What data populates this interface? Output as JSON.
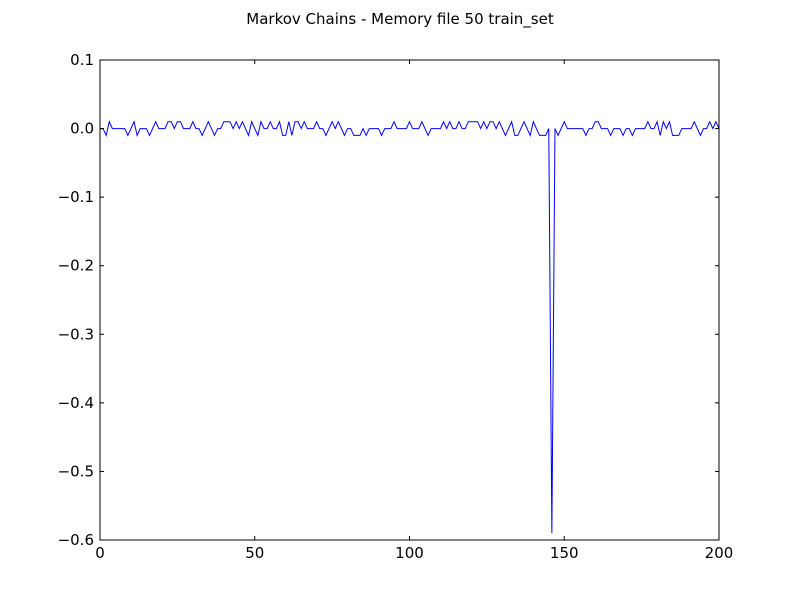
{
  "chart_data": {
    "type": "line",
    "title": "Markov Chains - Memory file 50 train_set",
    "xlabel": "",
    "ylabel": "",
    "xlim": [
      0,
      200
    ],
    "ylim": [
      -0.6,
      0.1
    ],
    "xticks": [
      "0",
      "50",
      "100",
      "150",
      "200"
    ],
    "yticks": [
      "0.1",
      "0.0",
      "−0.1",
      "−0.2",
      "−0.3",
      "−0.4",
      "−0.5",
      "−0.6"
    ],
    "grid": false,
    "series_color": "#0000ff",
    "series": [
      {
        "x": [
          0,
          1,
          2,
          3,
          4,
          5,
          6,
          7,
          8,
          9,
          10,
          11,
          12,
          13,
          14,
          15,
          16,
          17,
          18,
          19,
          20,
          21,
          22,
          23,
          24,
          25,
          26,
          27,
          28,
          29,
          30,
          31,
          32,
          33,
          34,
          35,
          36,
          37,
          38,
          39,
          40,
          41,
          42,
          43,
          44,
          45,
          46,
          47,
          48,
          49,
          50,
          51,
          52,
          53,
          54,
          55,
          56,
          57,
          58,
          59,
          60,
          61,
          62,
          63,
          64,
          65,
          66,
          67,
          68,
          69,
          70,
          71,
          72,
          73,
          74,
          75,
          76,
          77,
          78,
          79,
          80,
          81,
          82,
          83,
          84,
          85,
          86,
          87,
          88,
          89,
          90,
          91,
          92,
          93,
          94,
          95,
          96,
          97,
          98,
          99,
          100,
          101,
          102,
          103,
          104,
          105,
          106,
          107,
          108,
          109,
          110,
          111,
          112,
          113,
          114,
          115,
          116,
          117,
          118,
          119,
          120,
          121,
          122,
          123,
          124,
          125,
          126,
          127,
          128,
          129,
          130,
          131,
          132,
          133,
          134,
          135,
          136,
          137,
          138,
          139,
          140,
          141,
          142,
          143,
          144,
          145,
          146,
          147,
          148,
          149,
          150,
          151,
          152,
          153,
          154,
          155,
          156,
          157,
          158,
          159,
          160,
          161,
          162,
          163,
          164,
          165,
          166,
          167,
          168,
          169,
          170,
          171,
          172,
          173,
          174,
          175,
          176,
          177,
          178,
          179,
          180,
          181,
          182,
          183,
          184,
          185,
          186,
          187,
          188,
          189,
          190,
          191,
          192,
          193,
          194,
          195,
          196,
          197,
          198,
          199,
          200
        ],
        "y": [
          0.0,
          0.0,
          -0.01,
          0.01,
          0.0,
          0.0,
          0.0,
          0.0,
          0.0,
          -0.01,
          0.0,
          0.01,
          -0.01,
          0.0,
          0.0,
          0.0,
          -0.01,
          0.0,
          0.01,
          0.0,
          0.0,
          0.0,
          0.01,
          0.01,
          0.0,
          0.01,
          0.01,
          0.0,
          0.0,
          0.0,
          0.01,
          0.0,
          0.0,
          -0.01,
          0.0,
          0.01,
          0.0,
          -0.01,
          0.0,
          0.0,
          0.01,
          0.01,
          0.01,
          0.0,
          0.01,
          0.0,
          0.01,
          0.0,
          -0.01,
          0.01,
          0.0,
          -0.01,
          0.01,
          0.0,
          0.0,
          0.01,
          0.0,
          0.0,
          0.01,
          -0.01,
          -0.01,
          0.01,
          -0.01,
          0.01,
          0.01,
          0.0,
          0.01,
          0.0,
          0.0,
          0.0,
          0.01,
          0.0,
          0.0,
          -0.01,
          0.0,
          0.01,
          0.0,
          0.01,
          0.0,
          -0.01,
          0.0,
          0.0,
          -0.01,
          -0.01,
          -0.01,
          0.0,
          -0.01,
          0.0,
          0.0,
          0.0,
          0.0,
          -0.01,
          0.0,
          0.0,
          0.0,
          0.01,
          0.0,
          0.0,
          0.0,
          0.0,
          0.01,
          0.0,
          0.0,
          0.0,
          0.01,
          0.0,
          -0.01,
          0.0,
          0.0,
          0.0,
          0.0,
          0.01,
          0.0,
          0.01,
          0.0,
          0.0,
          0.01,
          0.0,
          0.0,
          0.01,
          0.01,
          0.01,
          0.01,
          0.0,
          0.01,
          0.0,
          0.01,
          0.01,
          0.0,
          0.01,
          0.0,
          -0.01,
          0.0,
          0.01,
          -0.01,
          -0.01,
          0.0,
          0.01,
          0.0,
          -0.01,
          0.01,
          0.0,
          -0.01,
          -0.01,
          -0.01,
          0.0,
          -0.59,
          0.0,
          -0.01,
          0.0,
          0.01,
          0.0,
          0.0,
          0.0,
          0.0,
          0.0,
          0.0,
          -0.01,
          0.0,
          0.0,
          0.01,
          0.01,
          0.0,
          0.0,
          0.0,
          -0.01,
          0.0,
          0.0,
          0.0,
          -0.01,
          0.0,
          0.0,
          -0.01,
          0.0,
          0.0,
          0.0,
          0.0,
          0.01,
          0.0,
          0.0,
          0.01,
          -0.01,
          0.01,
          0.0,
          0.01,
          -0.01,
          -0.01,
          -0.01,
          0.0,
          0.0,
          0.0,
          0.0,
          0.01,
          0.0,
          -0.01,
          0.0,
          0.0,
          0.01,
          0.0,
          0.01,
          0.0
        ]
      }
    ]
  }
}
